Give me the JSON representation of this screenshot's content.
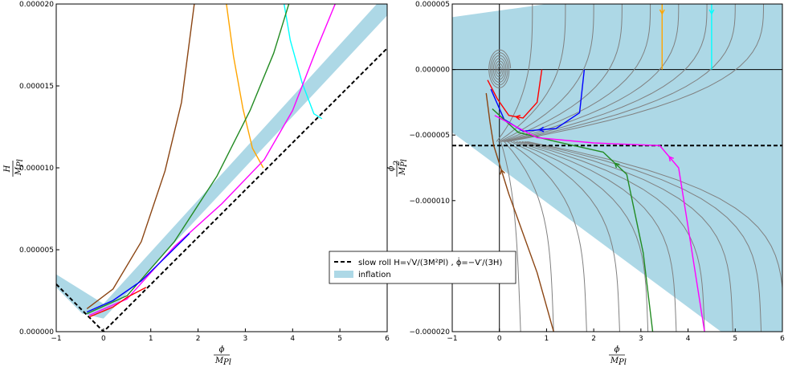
{
  "chart_data": [
    {
      "type": "line",
      "xlabel_num": "ϕ",
      "xlabel_den": "M",
      "xlabel_sub": "Pl",
      "ylabel_num": "H",
      "ylabel_den": "M",
      "ylabel_sub": "Pl",
      "xlim": [
        -1,
        6
      ],
      "ylim": [
        0,
        2e-05
      ],
      "x_ticks": [
        "−1",
        "0",
        "1",
        "2",
        "3",
        "4",
        "5",
        "6"
      ],
      "y_ticks": [
        "0.000000",
        "0.000005",
        "0.000010",
        "0.000015",
        "0.000020"
      ],
      "inflation_band": [
        [
          -1,
          3.5e-06
        ],
        [
          -1,
          2.7e-06
        ],
        [
          -0.45,
          1.1e-06
        ],
        [
          0,
          8e-07
        ],
        [
          6,
          1.93e-05
        ],
        [
          6,
          2e-05
        ],
        [
          5.78,
          2e-05
        ],
        [
          0,
          1.7e-06
        ]
      ],
      "slow_roll": {
        "style": "dashed",
        "color": "#000000",
        "points": [
          [
            -1,
            2.9e-06
          ],
          [
            0,
            0
          ],
          [
            6,
            1.73e-05
          ]
        ]
      },
      "series": [
        {
          "color": "#8b4513",
          "points": [
            [
              -0.35,
              1.4e-06
            ],
            [
              0.2,
              2.6e-06
            ],
            [
              0.8,
              5.5e-06
            ],
            [
              1.3,
              9.8e-06
            ],
            [
              1.65,
              1.4e-05
            ],
            [
              1.92,
              2e-05
            ]
          ]
        },
        {
          "color": "#ffa500",
          "points": [
            [
              2.6,
              2e-05
            ],
            [
              2.75,
              1.68e-05
            ],
            [
              2.95,
              1.36e-05
            ],
            [
              3.15,
              1.12e-05
            ],
            [
              3.38,
              1e-05
            ]
          ]
        },
        {
          "color": "#00ffff",
          "points": [
            [
              3.82,
              2e-05
            ],
            [
              3.95,
              1.78e-05
            ],
            [
              4.2,
              1.52e-05
            ],
            [
              4.45,
              1.33e-05
            ],
            [
              4.62,
              1.3e-05
            ]
          ]
        },
        {
          "color": "#228b22",
          "points": [
            [
              -0.35,
              1.1e-06
            ],
            [
              0.5,
              2.2e-06
            ],
            [
              1.5,
              5.5e-06
            ],
            [
              2.4,
              9.5e-06
            ],
            [
              3.1,
              1.35e-05
            ],
            [
              3.6,
              1.7e-05
            ],
            [
              3.92,
              2e-05
            ]
          ]
        },
        {
          "color": "#ff00ff",
          "points": [
            [
              -0.3,
              1e-06
            ],
            [
              0.5,
              2e-06
            ],
            [
              1.5,
              5.2e-06
            ],
            [
              2.5,
              7.8e-06
            ],
            [
              3.4,
              1.05e-05
            ],
            [
              4.0,
              1.35e-05
            ],
            [
              4.5,
              1.72e-05
            ],
            [
              4.9,
              2e-05
            ]
          ]
        },
        {
          "color": "#ff0000",
          "points": [
            [
              -0.3,
              9e-07
            ],
            [
              0.2,
              1.5e-06
            ],
            [
              0.5,
              2.1e-06
            ],
            [
              0.9,
              2.7e-06
            ]
          ]
        },
        {
          "color": "#0000ff",
          "points": [
            [
              -0.35,
              1.2e-06
            ],
            [
              0.2,
              1.9e-06
            ],
            [
              0.8,
              3.1e-06
            ],
            [
              1.4,
              4.8e-06
            ],
            [
              1.82,
              6e-06
            ]
          ]
        }
      ]
    },
    {
      "type": "line",
      "xlabel_num": "ϕ",
      "xlabel_den": "M",
      "xlabel_sub": "Pl",
      "ylabel_num": "ϕ̇",
      "ylabel_den": "M",
      "ylabel_sub": "Pl",
      "ylabel_sup": "2",
      "xlim": [
        -1,
        6
      ],
      "ylim": [
        -2e-05,
        5e-06
      ],
      "x_ticks": [
        "−1",
        "0",
        "1",
        "2",
        "3",
        "4",
        "5",
        "6"
      ],
      "y_ticks": [
        "−0.000020",
        "−0.000015",
        "−0.000010",
        "−0.000005",
        "0.000000",
        "0.000005"
      ],
      "inflation_band": [
        [
          -1,
          4e-06
        ],
        [
          -1,
          -4.8e-06
        ],
        [
          4.7,
          -2e-05
        ],
        [
          6,
          -2e-05
        ],
        [
          6,
          5e-06
        ],
        [
          1.0,
          5e-06
        ]
      ],
      "slow_roll": {
        "style": "dashed",
        "color": "#000000",
        "value": -5.8e-06
      },
      "series": [
        {
          "color": "#ffa500",
          "arrow": "down",
          "points": [
            [
              3.45,
              5e-06
            ],
            [
              3.45,
              3.5e-06
            ],
            [
              3.45,
              0
            ]
          ]
        },
        {
          "color": "#00ffff",
          "arrow": "down",
          "points": [
            [
              4.5,
              5e-06
            ],
            [
              4.5,
              3.5e-06
            ],
            [
              4.5,
              0
            ]
          ]
        },
        {
          "color": "#ff0000",
          "arrow": "down",
          "points": [
            [
              0.9,
              0
            ],
            [
              0.8,
              -2.5e-06
            ],
            [
              0.5,
              -3.7e-06
            ],
            [
              0.2,
              -3.5e-06
            ],
            [
              -0.05,
              -2.2e-06
            ],
            [
              -0.25,
              -8e-07
            ]
          ]
        },
        {
          "color": "#0000ff",
          "arrow": "down",
          "points": [
            [
              1.8,
              0
            ],
            [
              1.7,
              -3.3e-06
            ],
            [
              1.2,
              -4.5e-06
            ],
            [
              0.5,
              -4.7e-06
            ],
            [
              0.1,
              -3.8e-06
            ],
            [
              -0.18,
              -1.5e-06
            ]
          ]
        },
        {
          "color": "#8b4513",
          "arrow": "up",
          "points": [
            [
              1.15,
              -2e-05
            ],
            [
              0.8,
              -1.55e-05
            ],
            [
              0.2,
              -9.5e-06
            ],
            [
              -0.12,
              -5.8e-06
            ],
            [
              -0.2,
              -4e-06
            ],
            [
              -0.28,
              -1.8e-06
            ]
          ]
        },
        {
          "color": "#228b22",
          "arrow": "up",
          "points": [
            [
              3.25,
              -2e-05
            ],
            [
              3.05,
              -1.4e-05
            ],
            [
              2.7,
              -8e-06
            ],
            [
              2.2,
              -6.3e-06
            ],
            [
              1.2,
              -5.5e-06
            ],
            [
              0.4,
              -4.8e-06
            ],
            [
              -0.15,
              -3e-06
            ]
          ]
        },
        {
          "color": "#ff00ff",
          "arrow": "up",
          "points": [
            [
              4.35,
              -2e-05
            ],
            [
              4.0,
              -1.2e-05
            ],
            [
              3.8,
              -7.5e-06
            ],
            [
              3.4,
              -5.8e-06
            ],
            [
              2.0,
              -5.6e-06
            ],
            [
              0.8,
              -5.2e-06
            ],
            [
              -0.1,
              -3.5e-06
            ]
          ]
        }
      ]
    }
  ],
  "legend": {
    "items": [
      {
        "label": "slow roll H=√V/(3M²Pl) , ϕ̇=−V′/(3H)",
        "style": "dashed",
        "color": "#000000"
      },
      {
        "label": "inflation",
        "style": "patch",
        "color": "#add8e6"
      }
    ],
    "position": "center"
  }
}
